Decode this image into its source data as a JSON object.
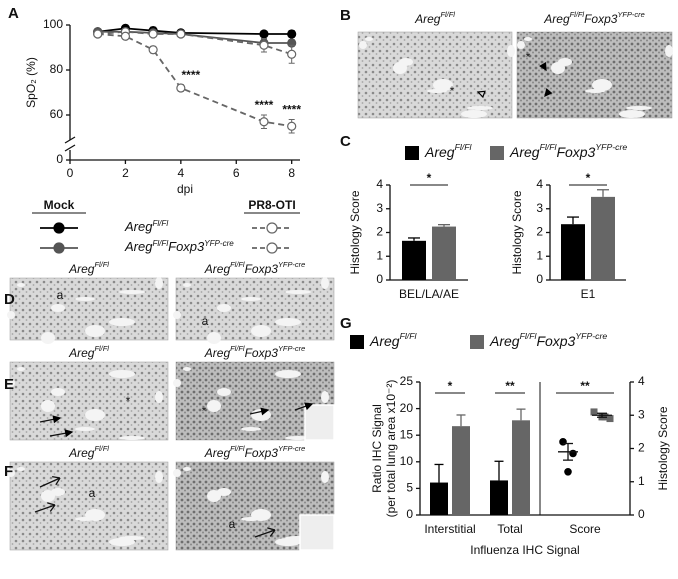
{
  "figure": {
    "panels": [
      "A",
      "B",
      "C",
      "D",
      "E",
      "F",
      "G"
    ],
    "genotypes": [
      {
        "parts": [
          "Areg",
          "Fl/Fl"
        ]
      },
      {
        "parts": [
          "Areg",
          "Fl/Fl",
          "Foxp3",
          "YFP-cre"
        ]
      }
    ],
    "image_labels": {
      "B": [
        "*",
        "*"
      ],
      "D": [
        "a",
        "a"
      ],
      "E": [
        "*",
        "*"
      ],
      "F": [
        "a",
        "a"
      ]
    }
  },
  "chart_data": [
    {
      "type": "line",
      "x": [
        1,
        2,
        3,
        4,
        7,
        8
      ],
      "xlim": [
        0,
        8.3
      ],
      "xticks": [
        0,
        2,
        4,
        6,
        8
      ],
      "ylim": [
        0,
        100
      ],
      "yticks": [
        0,
        60,
        80,
        100
      ],
      "axis_break": true,
      "xlabel": "dpi",
      "ylabel": "SpO₂ (%)",
      "legend": {
        "groups": [
          "Mock",
          "PR8-OTI"
        ]
      },
      "series": [
        {
          "group": 0,
          "genotype": 0,
          "color": "#000000",
          "dashed": false,
          "filled": true,
          "values": [
            97,
            98.5,
            97.5,
            96.5,
            96,
            96
          ],
          "errors": [
            1,
            1,
            1.5,
            1,
            1,
            1.5
          ]
        },
        {
          "group": 0,
          "genotype": 1,
          "color": "#555555",
          "dashed": false,
          "filled": true,
          "values": [
            97,
            97,
            96.5,
            96,
            92,
            92
          ],
          "errors": [
            1,
            1,
            1,
            1,
            1.5,
            1.5
          ]
        },
        {
          "group": 1,
          "genotype": 0,
          "color": "#666666",
          "dashed": true,
          "filled": false,
          "values": [
            96,
            97,
            96,
            96,
            91,
            87
          ],
          "errors": [
            1,
            1,
            1,
            1,
            3,
            4
          ]
        },
        {
          "group": 1,
          "genotype": 1,
          "color": "#666666",
          "dashed": true,
          "filled": false,
          "values": [
            96,
            95,
            89,
            72,
            57,
            55
          ],
          "errors": [
            1,
            1,
            1.5,
            1.5,
            3,
            3
          ]
        }
      ],
      "annotations": [
        "****",
        "****",
        "****"
      ]
    },
    {
      "type": "bar",
      "categories": [
        "BEL/LA/AE"
      ],
      "ylim": [
        0,
        4
      ],
      "yticks": [
        0,
        1,
        2,
        3,
        4
      ],
      "ylabel": "Histology Score",
      "series": [
        {
          "genotype": 0,
          "color": "#000000",
          "values": [
            1.65
          ],
          "errors": [
            0.12
          ]
        },
        {
          "genotype": 1,
          "color": "#666666",
          "values": [
            2.25
          ],
          "errors": [
            0.08
          ]
        }
      ],
      "annotations": [
        "*"
      ]
    },
    {
      "type": "bar",
      "categories": [
        "E1"
      ],
      "ylim": [
        0,
        4
      ],
      "yticks": [
        0,
        1,
        2,
        3,
        4
      ],
      "ylabel": "Histology Score",
      "series": [
        {
          "genotype": 0,
          "color": "#000000",
          "values": [
            2.35
          ],
          "errors": [
            0.3
          ]
        },
        {
          "genotype": 1,
          "color": "#666666",
          "values": [
            3.5
          ],
          "errors": [
            0.3
          ]
        }
      ],
      "annotations": [
        "*"
      ]
    },
    {
      "type": "bar",
      "categories": [
        "Interstitial",
        "Total"
      ],
      "ylim": [
        0,
        25
      ],
      "yticks": [
        0,
        5,
        10,
        15,
        20,
        25
      ],
      "ylabel": [
        "Ratio IHC Signal",
        "(per total lung area x10⁻²)"
      ],
      "y2lim": [
        0,
        4
      ],
      "y2ticks": [
        0,
        1,
        2,
        3,
        4
      ],
      "y2label": "Histology Score",
      "xlabel": "Influenza IHC Signal",
      "series": [
        {
          "genotype": 0,
          "color": "#000000",
          "values": [
            6.1,
            6.5
          ],
          "errors": [
            3.4,
            3.6
          ]
        },
        {
          "genotype": 1,
          "color": "#666666",
          "values": [
            16.7,
            17.8
          ],
          "errors": [
            2.1,
            2.1
          ]
        }
      ],
      "score": {
        "label": "Score",
        "axis": "y2",
        "groups": [
          {
            "genotype": 0,
            "color": "#000000",
            "marker": "circle",
            "values": [
              2.2,
              1.85,
              1.3
            ],
            "mean": 1.9,
            "error": 0.25
          },
          {
            "genotype": 1,
            "color": "#666666",
            "marker": "square",
            "values": [
              3.1,
              2.95,
              2.9,
              2.95
            ],
            "mean": 3.0,
            "error": 0.06
          }
        ]
      },
      "annotations": [
        "*",
        "**",
        "**"
      ]
    }
  ]
}
